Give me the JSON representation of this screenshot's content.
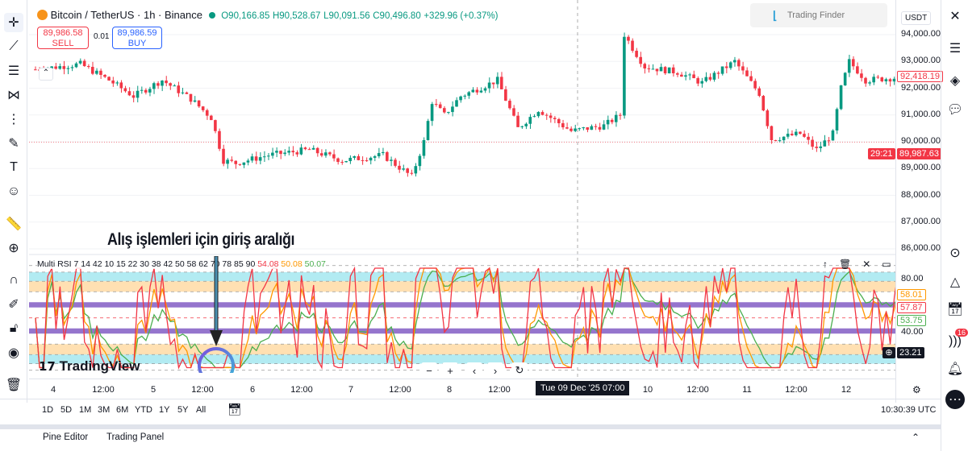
{
  "symbol": {
    "title": "Bitcoin / TetherUS · 1h · Binance",
    "open": "O90,166.85",
    "high": "H90,528.67",
    "low": "L90,091.56",
    "close": "C90,496.80",
    "change": "+329.96 (+0.37%)"
  },
  "trade": {
    "sell_price": "89,986.58",
    "sell_label": "SELL",
    "spread": "0.01",
    "buy_price": "89,986.59",
    "buy_label": "BUY"
  },
  "logo": {
    "brand": "Trading Finder",
    "tv": "TradingView"
  },
  "currency": "USDT",
  "price_axis": [
    "94,000.00",
    "93,000.00",
    "92,000.00",
    "91,000.00",
    "90,000.00",
    "89,000.00",
    "88,000.00",
    "87,000.00",
    "86,000.00"
  ],
  "price_tags": {
    "last": "92,418.19",
    "current": "89,987.63",
    "countdown": "29:21"
  },
  "annotation": "Alış işlemleri için giriş aralığı",
  "rsi": {
    "legend": "Multi RSI 7 14 42 10 15 22 30 38 42 50 58 62 70 78 85 90",
    "v1": "54.08",
    "v2": "50.08",
    "v3": "50.07",
    "axis80": "80.00",
    "axis40": "40.00",
    "tag_orange": "58.01",
    "tag_red": "57.87",
    "tag_green": "53.75",
    "crosshair": "23.21",
    "colors": {
      "red": "#f23645",
      "orange": "#ff9800",
      "green": "#4caf50"
    }
  },
  "time_axis": [
    "4",
    "12:00",
    "5",
    "12:00",
    "6",
    "12:00",
    "7",
    "12:00",
    "8",
    "12:00",
    "10",
    "12:00",
    "11",
    "12:00",
    "12"
  ],
  "time_cursor": "Tue 09 Dec '25   07:00",
  "ranges": [
    "1D",
    "5D",
    "1M",
    "3M",
    "6M",
    "YTD",
    "1Y",
    "5Y",
    "All"
  ],
  "clock": "10:30:39 UTC",
  "bottom_tabs": [
    "Pine Editor",
    "Trading Panel"
  ],
  "alerts_badge": "16",
  "price_keypoints": [
    [
      0,
      92700
    ],
    [
      11,
      92900
    ],
    [
      18,
      92300
    ],
    [
      24,
      91700
    ],
    [
      31,
      92300
    ],
    [
      38,
      91600
    ],
    [
      43,
      90900
    ],
    [
      46,
      89300
    ],
    [
      49,
      89200
    ],
    [
      57,
      89500
    ],
    [
      67,
      89700
    ],
    [
      75,
      89300
    ],
    [
      85,
      89500
    ],
    [
      92,
      88700
    ],
    [
      95,
      90000
    ],
    [
      97,
      91500
    ],
    [
      100,
      91000
    ],
    [
      104,
      91700
    ],
    [
      113,
      92300
    ],
    [
      118,
      90500
    ],
    [
      123,
      91200
    ],
    [
      131,
      90400
    ],
    [
      139,
      90600
    ],
    [
      143,
      91000
    ],
    [
      144,
      94000
    ],
    [
      146,
      93500
    ],
    [
      149,
      92800
    ],
    [
      157,
      92600
    ],
    [
      163,
      92200
    ],
    [
      171,
      93000
    ],
    [
      177,
      91800
    ],
    [
      180,
      90100
    ],
    [
      187,
      90300
    ],
    [
      191,
      89700
    ],
    [
      195,
      90300
    ],
    [
      197,
      92000
    ],
    [
      199,
      93000
    ],
    [
      203,
      92300
    ],
    [
      211,
      92400
    ]
  ]
}
